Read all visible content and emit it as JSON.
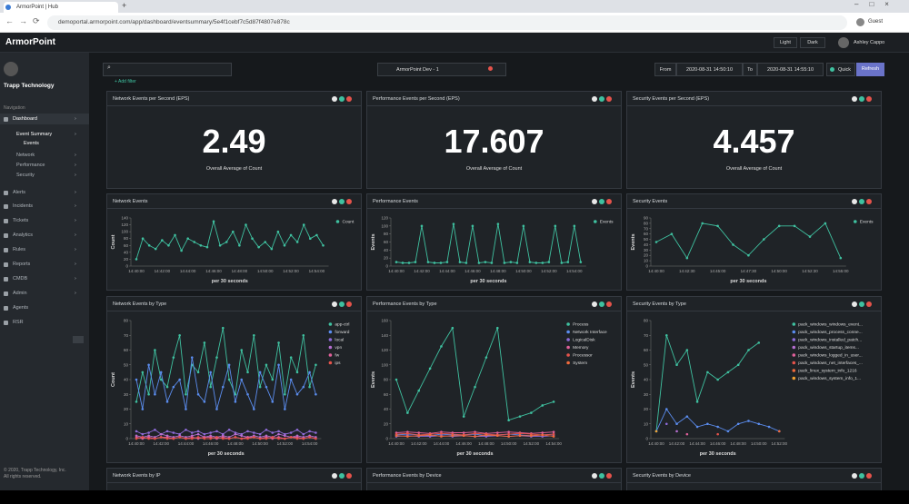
{
  "browser": {
    "tab_title": "ArmorPoint | Hub",
    "new_tab": "+",
    "url": "demoportal.armorpoint.com/app/dashboard/eventsummary/5e4f1cebf7c5d87f4807e878c",
    "profile": "Guest"
  },
  "header": {
    "logo": "ArmorPoint",
    "light": "Light",
    "dark": "Dark",
    "user": "Ashley Cappo"
  },
  "sidebar": {
    "org": "Trapp Technology",
    "nav_heading": "Navigation",
    "items": [
      "Dashboard",
      "Event Summary",
      "Events",
      "Network",
      "Performance",
      "Security",
      "Alerts",
      "Incidents",
      "Tickets",
      "Analytics",
      "Rules",
      "Reports",
      "CMDB",
      "Admin",
      "Agents",
      "RSR"
    ],
    "footer": [
      "© 2020, Trapp Technology, Inc.",
      "All rights reserved."
    ]
  },
  "toolbar": {
    "add_filter": "+ Add filter",
    "tenant": "ArmorPoint Dev - 1",
    "from_label": "From",
    "from": "2020-08-31 14:50:10",
    "to_label": "To",
    "to": "2020-08-31 14:55:10",
    "quick": "Quick",
    "refresh": "Refresh"
  },
  "stats": [
    {
      "title": "Network Events per Second (EPS)",
      "value": "2.49",
      "caption": "Overall Average of Count"
    },
    {
      "title": "Performance Events per Second (EPS)",
      "value": "17.607",
      "caption": "Overall Average of Count"
    },
    {
      "title": "Security Events per Second (EPS)",
      "value": "4.457",
      "caption": "Overall Average of Count"
    }
  ],
  "chart_data": [
    {
      "type": "line",
      "title": "Network Events",
      "y_label": "Count",
      "x_label": "per 30 seconds",
      "categories": [
        "14:40:00",
        null,
        null,
        null,
        "14:42:00",
        null,
        null,
        null,
        "14:44:00",
        null,
        null,
        null,
        "14:46:00",
        null,
        null,
        null,
        "14:48:00",
        null,
        null,
        null,
        "14:50:00",
        null,
        null,
        null,
        "14:52:00",
        null,
        null,
        null,
        "14:54:00",
        null
      ],
      "ylim": [
        0,
        140
      ],
      "yticks": [
        0,
        20,
        40,
        60,
        80,
        100,
        120,
        140
      ],
      "series": [
        {
          "name": "Count",
          "color": "#3fc1a0",
          "values": [
            20,
            80,
            60,
            50,
            75,
            60,
            90,
            45,
            80,
            70,
            60,
            55,
            130,
            60,
            70,
            100,
            60,
            120,
            80,
            55,
            70,
            50,
            100,
            60,
            90,
            70,
            120,
            80,
            90,
            60
          ]
        }
      ]
    },
    {
      "type": "line",
      "title": "Performance Events",
      "y_label": "Events",
      "x_label": "per 30 seconds",
      "categories": [
        "14:40:00",
        null,
        null,
        null,
        "14:42:00",
        null,
        null,
        null,
        "14:44:00",
        null,
        null,
        null,
        "14:46:00",
        null,
        null,
        null,
        "14:48:00",
        null,
        null,
        null,
        "14:50:00",
        null,
        null,
        null,
        "14:52:00",
        null,
        null,
        null,
        "14:54:00",
        null
      ],
      "ylim": [
        0,
        120
      ],
      "yticks": [
        0,
        20,
        40,
        60,
        80,
        100,
        120
      ],
      "series": [
        {
          "name": "Events",
          "color": "#3fc1a0",
          "values": [
            10,
            8,
            8,
            10,
            100,
            10,
            8,
            8,
            10,
            105,
            10,
            8,
            100,
            8,
            10,
            8,
            105,
            8,
            10,
            8,
            100,
            10,
            8,
            8,
            10,
            100,
            8,
            10,
            100,
            10
          ]
        }
      ]
    },
    {
      "type": "line",
      "title": "Security Events",
      "y_label": "Events",
      "x_label": "per 30 seconds",
      "categories": [
        "14:40:00",
        null,
        "14:42:30",
        null,
        "14:45:00",
        null,
        "14:47:30",
        null,
        "14:50:00",
        null,
        "14:52:30",
        null,
        "14:55:00"
      ],
      "ylim": [
        0,
        90
      ],
      "yticks": [
        0,
        10,
        20,
        30,
        40,
        50,
        60,
        70,
        80,
        90
      ],
      "series": [
        {
          "name": "Events",
          "color": "#3fc1a0",
          "values": [
            45,
            60,
            15,
            80,
            75,
            40,
            20,
            50,
            75,
            75,
            55,
            80,
            15
          ]
        }
      ]
    },
    {
      "type": "line",
      "title": "Network Events by Type",
      "y_label": "Count",
      "x_label": "per 30 seconds",
      "categories": [
        "14:40:00",
        null,
        null,
        null,
        "14:42:00",
        null,
        null,
        null,
        "14:44:00",
        null,
        null,
        null,
        "14:46:00",
        null,
        null,
        null,
        "14:48:00",
        null,
        null,
        null,
        "14:50:00",
        null,
        null,
        null,
        "14:52:00",
        null,
        null,
        null,
        "14:54:00",
        null
      ],
      "ylim": [
        0,
        80
      ],
      "yticks": [
        0,
        10,
        20,
        30,
        40,
        50,
        60,
        70,
        80
      ],
      "series": [
        {
          "name": "app-ctrl",
          "color": "#3fc1a0",
          "values": [
            25,
            45,
            30,
            60,
            40,
            35,
            55,
            70,
            30,
            50,
            45,
            65,
            35,
            55,
            75,
            40,
            30,
            60,
            45,
            70,
            35,
            50,
            40,
            65,
            30,
            55,
            45,
            70,
            35,
            50
          ]
        },
        {
          "name": "forward",
          "color": "#5b8def",
          "values": [
            40,
            20,
            50,
            30,
            45,
            25,
            35,
            40,
            20,
            55,
            30,
            25,
            45,
            20,
            35,
            50,
            25,
            40,
            30,
            20,
            45,
            35,
            25,
            50,
            20,
            40,
            30,
            35,
            45,
            30
          ]
        },
        {
          "name": "local",
          "color": "#8e6bd8",
          "values": [
            5,
            3,
            4,
            6,
            3,
            5,
            4,
            3,
            6,
            4,
            5,
            3,
            4,
            5,
            3,
            6,
            4,
            3,
            5,
            4,
            3,
            6,
            4,
            5,
            3,
            4,
            6,
            3,
            5,
            4
          ]
        },
        {
          "name": "vpn",
          "color": "#b66fd0",
          "values": [
            2,
            1,
            2,
            1,
            3,
            2,
            1,
            2,
            1,
            2,
            3,
            1,
            2,
            1,
            2,
            1,
            3,
            2,
            1,
            2,
            1,
            2,
            1,
            3,
            2,
            1,
            2,
            1,
            2,
            1
          ]
        },
        {
          "name": "fw",
          "color": "#e0609a",
          "values": [
            1,
            0,
            1,
            0,
            1,
            1,
            0,
            1,
            0,
            1,
            0,
            1,
            1,
            0,
            1,
            0,
            1,
            0,
            1,
            1,
            0,
            1,
            0,
            1,
            0,
            1,
            1,
            0,
            1,
            0
          ]
        },
        {
          "name": "ips",
          "color": "#e5534b",
          "values": [
            0,
            1,
            0,
            0,
            1,
            0,
            0,
            1,
            0,
            0,
            1,
            0,
            0,
            1,
            0,
            0,
            1,
            0,
            0,
            1,
            0,
            0,
            1,
            0,
            0,
            1,
            0,
            0,
            1,
            0
          ]
        }
      ]
    },
    {
      "type": "line",
      "title": "Performance Events by Type",
      "y_label": "Events",
      "x_label": "per 30 seconds",
      "categories": [
        "14:40:00",
        null,
        "14:42:00",
        null,
        "14:44:00",
        null,
        "14:46:00",
        null,
        "14:48:00",
        null,
        "14:50:00",
        null,
        "14:52:00",
        null,
        "14:54:00"
      ],
      "ylim": [
        0,
        160
      ],
      "yticks": [
        0,
        20,
        40,
        60,
        80,
        100,
        120,
        140,
        160
      ],
      "series": [
        {
          "name": "Process",
          "color": "#3fc1a0",
          "values": [
            80,
            35,
            65,
            95,
            125,
            150,
            30,
            70,
            110,
            150,
            25,
            30,
            35,
            45,
            50
          ]
        },
        {
          "name": "Network Interface",
          "color": "#5b8def",
          "values": [
            5,
            6,
            5,
            4,
            6,
            5,
            5,
            6,
            4,
            5,
            6,
            5,
            4,
            5,
            6
          ]
        },
        {
          "name": "LogicalDisk",
          "color": "#8e6bd8",
          "values": [
            3,
            4,
            3,
            3,
            4,
            3,
            4,
            3,
            3,
            4,
            3,
            4,
            3,
            3,
            4
          ]
        },
        {
          "name": "Memory",
          "color": "#e0609a",
          "values": [
            8,
            9,
            8,
            7,
            9,
            8,
            8,
            9,
            7,
            8,
            9,
            8,
            7,
            8,
            9
          ]
        },
        {
          "name": "Processor",
          "color": "#e5534b",
          "values": [
            6,
            7,
            5,
            6,
            7,
            6,
            5,
            7,
            6,
            5,
            6,
            7,
            6,
            5,
            6
          ]
        },
        {
          "name": "System",
          "color": "#f06a3c",
          "values": [
            4,
            3,
            4,
            5,
            3,
            4,
            4,
            3,
            5,
            4,
            3,
            4,
            4,
            5,
            3
          ]
        }
      ]
    },
    {
      "type": "line",
      "title": "Security Events by Type",
      "y_label": "Events",
      "x_label": "per 30 seconds",
      "categories": [
        "14:40:00",
        null,
        "14:42:00",
        null,
        "14:44:00",
        null,
        "14:46:00",
        null,
        "14:48:00",
        null,
        "14:50:00",
        null,
        "14:52:00"
      ],
      "ylim": [
        0,
        80
      ],
      "yticks": [
        0,
        10,
        20,
        30,
        40,
        50,
        60,
        70,
        80
      ],
      "series": [
        {
          "name": "pack_windows_windows_event...",
          "color": "#3fc1a0",
          "values": [
            5,
            70,
            50,
            60,
            25,
            45,
            40,
            45,
            50,
            60,
            65,
            null,
            null
          ]
        },
        {
          "name": "pack_windows_process_conne...",
          "color": "#5b8def",
          "values": [
            5,
            20,
            10,
            15,
            8,
            10,
            8,
            5,
            10,
            12,
            10,
            8,
            5
          ]
        },
        {
          "name": "pack_windows_installed_patch...",
          "color": "#8e6bd8",
          "values": [
            null,
            10,
            null,
            null,
            null,
            null,
            null,
            null,
            null,
            null,
            null,
            null,
            null
          ]
        },
        {
          "name": "pack_windows_startup_items...",
          "color": "#b66fd0",
          "values": [
            null,
            null,
            5,
            null,
            null,
            null,
            null,
            null,
            null,
            null,
            null,
            null,
            null
          ]
        },
        {
          "name": "pack_windows_logged_in_user...",
          "color": "#e0609a",
          "values": [
            null,
            null,
            null,
            3,
            null,
            null,
            null,
            null,
            null,
            null,
            null,
            null,
            null
          ]
        },
        {
          "name": "pack_windows_net_interfaces_...",
          "color": "#e5534b",
          "values": [
            null,
            null,
            null,
            null,
            null,
            null,
            3,
            null,
            null,
            null,
            null,
            null,
            null
          ]
        },
        {
          "name": "pack_linux_system_info_1216",
          "color": "#f06a3c",
          "values": [
            null,
            null,
            null,
            null,
            null,
            null,
            null,
            null,
            null,
            null,
            null,
            null,
            5
          ]
        },
        {
          "name": "pack_windows_system_info_1...",
          "color": "#f0a030",
          "values": [
            5,
            null,
            null,
            null,
            null,
            null,
            null,
            null,
            null,
            null,
            null,
            null,
            null
          ]
        }
      ]
    }
  ],
  "bottom_widgets": [
    "Network Events by IP",
    "Performance Events by Device",
    "Security Events by Device"
  ]
}
